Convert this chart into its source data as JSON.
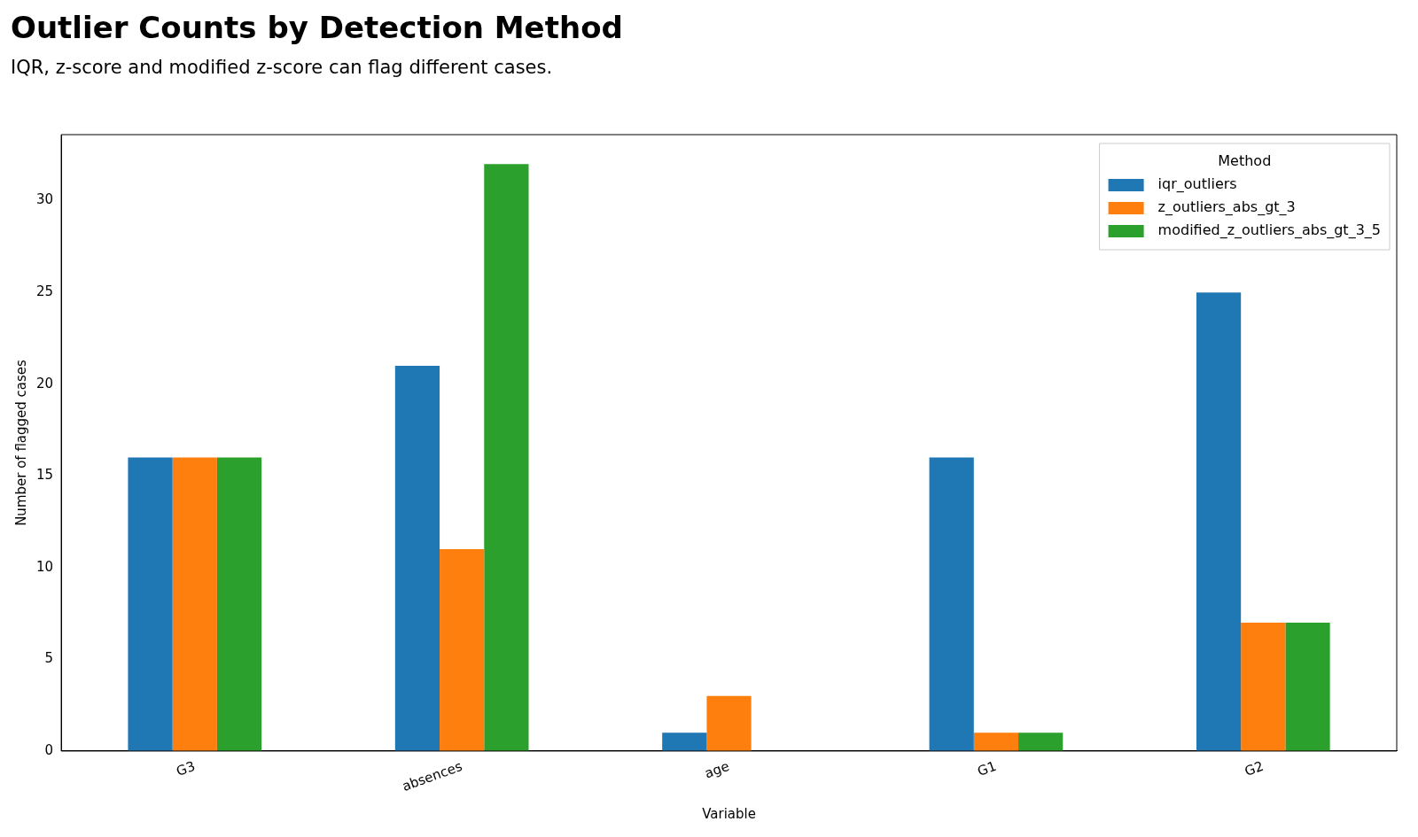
{
  "chart_data": {
    "type": "bar",
    "title": "Outlier Counts by Detection Method",
    "subtitle": "IQR, z-score and modified z-score can flag different cases.",
    "xlabel": "Variable",
    "ylabel": "Number of flagged cases",
    "legend_title": "Method",
    "categories": [
      "G3",
      "absences",
      "age",
      "G1",
      "G2"
    ],
    "series": [
      {
        "name": "iqr_outliers",
        "color": "#1f77b4",
        "values": [
          16,
          21,
          1,
          16,
          25
        ]
      },
      {
        "name": "z_outliers_abs_gt_3",
        "color": "#ff7f0e",
        "values": [
          16,
          11,
          3,
          1,
          7
        ]
      },
      {
        "name": "modified_z_outliers_abs_gt_3_5",
        "color": "#2ca02c",
        "values": [
          16,
          32,
          0,
          1,
          7
        ]
      }
    ],
    "ylim": [
      0,
      33.6
    ],
    "yticks": [
      0,
      5,
      10,
      15,
      20,
      25,
      30
    ],
    "grid": false,
    "legend": "top right"
  }
}
